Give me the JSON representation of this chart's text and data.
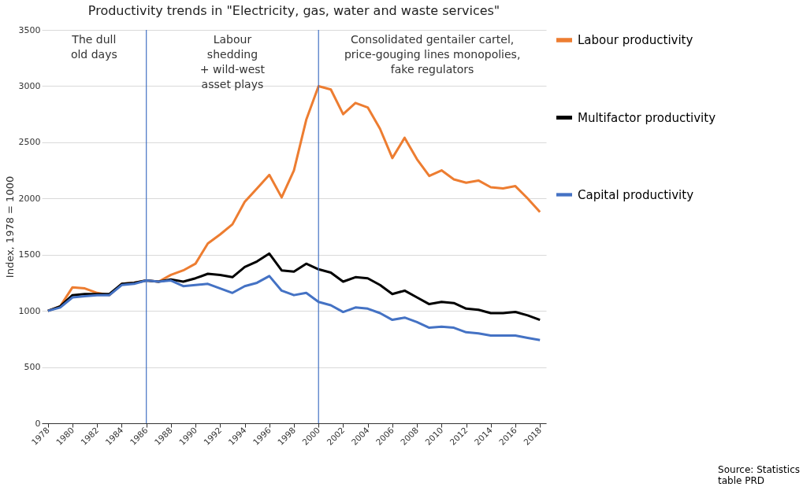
{
  "chart_data": {
    "type": "line",
    "title": "Productivity trends in \"Electricity, gas, water and waste services\"",
    "ylabel": "Index, 1978 = 1000",
    "x": [
      1978,
      1979,
      1980,
      1981,
      1982,
      1983,
      1984,
      1985,
      1986,
      1987,
      1988,
      1989,
      1990,
      1991,
      1992,
      1993,
      1994,
      1995,
      1996,
      1997,
      1998,
      1999,
      2000,
      2001,
      2002,
      2003,
      2004,
      2005,
      2006,
      2007,
      2008,
      2009,
      2010,
      2011,
      2012,
      2013,
      2014,
      2015,
      2016,
      2017,
      2018
    ],
    "series": [
      {
        "name": "Labour productivity",
        "color": "#ed7d31",
        "values": [
          1000,
          1040,
          1210,
          1200,
          1160,
          1140,
          1240,
          1250,
          1270,
          1260,
          1320,
          1360,
          1420,
          1600,
          1680,
          1770,
          1970,
          2090,
          2210,
          2010,
          2250,
          2700,
          3000,
          2970,
          2750,
          2850,
          2810,
          2620,
          2360,
          2540,
          2350,
          2200,
          2250,
          2170,
          2140,
          2160,
          2100,
          2090,
          2110,
          2000,
          1880
        ]
      },
      {
        "name": "Multifactor productivity",
        "color": "#000000",
        "values": [
          1000,
          1040,
          1140,
          1150,
          1150,
          1150,
          1240,
          1250,
          1270,
          1260,
          1280,
          1260,
          1290,
          1330,
          1320,
          1300,
          1390,
          1440,
          1510,
          1360,
          1350,
          1420,
          1370,
          1340,
          1260,
          1300,
          1290,
          1230,
          1150,
          1180,
          1120,
          1060,
          1080,
          1070,
          1020,
          1010,
          980,
          980,
          990,
          960,
          920
        ]
      },
      {
        "name": "Capital productivity",
        "color": "#4472c4",
        "values": [
          1000,
          1030,
          1120,
          1130,
          1140,
          1140,
          1230,
          1240,
          1270,
          1260,
          1270,
          1220,
          1230,
          1240,
          1200,
          1160,
          1220,
          1250,
          1310,
          1180,
          1140,
          1160,
          1080,
          1050,
          990,
          1030,
          1020,
          980,
          920,
          940,
          900,
          850,
          860,
          850,
          810,
          800,
          780,
          780,
          780,
          760,
          740
        ]
      }
    ],
    "xlim": [
      1977.5,
      2018.5
    ],
    "xticks": [
      1978,
      1980,
      1982,
      1984,
      1986,
      1988,
      1990,
      1992,
      1994,
      1996,
      1998,
      2000,
      2002,
      2004,
      2006,
      2008,
      2010,
      2012,
      2014,
      2016,
      2018
    ],
    "ylim": [
      0,
      3500
    ],
    "yticks": [
      0,
      500,
      1000,
      1500,
      2000,
      2500,
      3000,
      3500
    ],
    "ref_lines": [
      {
        "axis": "x",
        "value": 1986,
        "color": "#4472c4"
      },
      {
        "axis": "x",
        "value": 2000,
        "color": "#4472c4"
      }
    ],
    "annotations": [
      "The dull\nold days",
      "Labour\nshedding\n+ wild-west\nasset plays",
      "Consolidated gentailer cartel,\nprice-gouging lines monopolies,\nfake regulators",
      "Source: Statistics\ntable PRD"
    ],
    "grid": "y",
    "legend": "right",
    "marker": "none",
    "line_style": "solid"
  }
}
